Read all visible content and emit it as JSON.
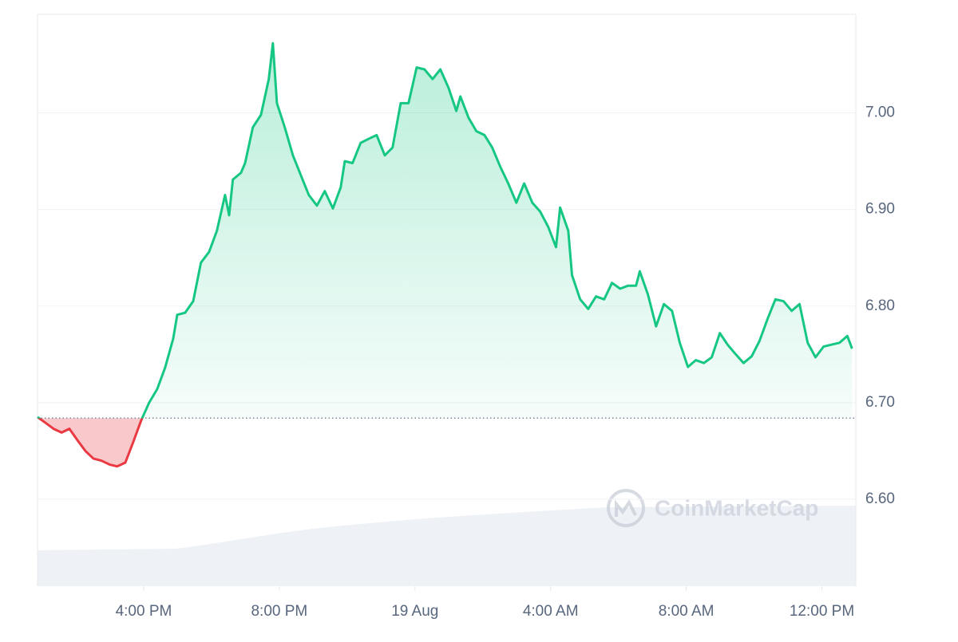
{
  "chart_data": {
    "type": "line",
    "watermark": "CoinMarketCap",
    "color": "#16c784",
    "negative_color": "#ea3943",
    "baseline": 6.684,
    "grid": true,
    "xlim": [
      12.87,
      37
    ],
    "ylim": [
      6.51,
      7.102
    ],
    "xticks": [
      {
        "value": 16,
        "label": "4:00 PM"
      },
      {
        "value": 20,
        "label": "8:00 PM"
      },
      {
        "value": 24,
        "label": "19 Aug"
      },
      {
        "value": 28,
        "label": "4:00 AM"
      },
      {
        "value": 32,
        "label": "8:00 AM"
      },
      {
        "value": 36,
        "label": "12:00 PM"
      }
    ],
    "yticks": [
      {
        "value": 6.6,
        "label": "6.60"
      },
      {
        "value": 6.7,
        "label": "6.70"
      },
      {
        "value": 6.8,
        "label": "6.80"
      },
      {
        "value": 6.9,
        "label": "6.90"
      },
      {
        "value": 7.0,
        "label": "7.00"
      }
    ],
    "x": [
      12.87,
      13.11,
      13.34,
      13.58,
      13.81,
      14.05,
      14.28,
      14.52,
      14.75,
      14.99,
      15.22,
      15.46,
      15.69,
      15.93,
      16.16,
      16.4,
      16.63,
      16.87,
      16.99,
      17.22,
      17.46,
      17.69,
      17.93,
      18.16,
      18.4,
      18.52,
      18.63,
      18.87,
      18.99,
      19.22,
      19.46,
      19.69,
      19.81,
      19.93,
      20.16,
      20.4,
      20.63,
      20.87,
      21.11,
      21.34,
      21.58,
      21.81,
      21.93,
      22.16,
      22.4,
      22.63,
      22.87,
      23.11,
      23.34,
      23.58,
      23.81,
      24.05,
      24.28,
      24.52,
      24.75,
      24.99,
      25.22,
      25.34,
      25.58,
      25.81,
      26.05,
      26.28,
      26.52,
      26.75,
      26.99,
      27.22,
      27.46,
      27.69,
      27.93,
      28.16,
      28.28,
      28.52,
      28.63,
      28.87,
      29.11,
      29.34,
      29.58,
      29.81,
      30.05,
      30.28,
      30.52,
      30.63,
      30.87,
      31.11,
      31.34,
      31.58,
      31.81,
      32.05,
      32.28,
      32.52,
      32.75,
      32.99,
      33.22,
      33.46,
      33.69,
      33.93,
      34.16,
      34.4,
      34.63,
      34.87,
      35.11,
      35.34,
      35.58,
      35.81,
      36.05,
      36.28,
      36.52,
      36.75,
      36.89
    ],
    "values": [
      6.685,
      6.679,
      6.673,
      6.669,
      6.673,
      6.661,
      6.65,
      6.642,
      6.64,
      6.636,
      6.634,
      6.638,
      6.659,
      6.682,
      6.7,
      6.714,
      6.736,
      6.766,
      6.791,
      6.793,
      6.805,
      6.845,
      6.856,
      6.878,
      6.915,
      6.894,
      6.931,
      6.938,
      6.948,
      6.985,
      6.998,
      7.035,
      7.072,
      7.01,
      6.985,
      6.956,
      6.936,
      6.915,
      6.904,
      6.919,
      6.901,
      6.923,
      6.95,
      6.948,
      6.969,
      6.973,
      6.977,
      6.956,
      6.964,
      7.01,
      7.01,
      7.047,
      7.045,
      7.035,
      7.045,
      7.026,
      7.002,
      7.017,
      6.995,
      6.981,
      6.977,
      6.964,
      6.944,
      6.927,
      6.907,
      6.927,
      6.907,
      6.898,
      6.882,
      6.861,
      6.902,
      6.878,
      6.832,
      6.807,
      6.797,
      6.81,
      6.807,
      6.824,
      6.818,
      6.821,
      6.821,
      6.836,
      6.812,
      6.779,
      6.802,
      6.795,
      6.762,
      6.737,
      6.744,
      6.741,
      6.747,
      6.772,
      6.76,
      6.75,
      6.741,
      6.748,
      6.764,
      6.787,
      6.807,
      6.805,
      6.795,
      6.802,
      6.762,
      6.747,
      6.758,
      6.76,
      6.762,
      6.769,
      6.756
    ]
  }
}
